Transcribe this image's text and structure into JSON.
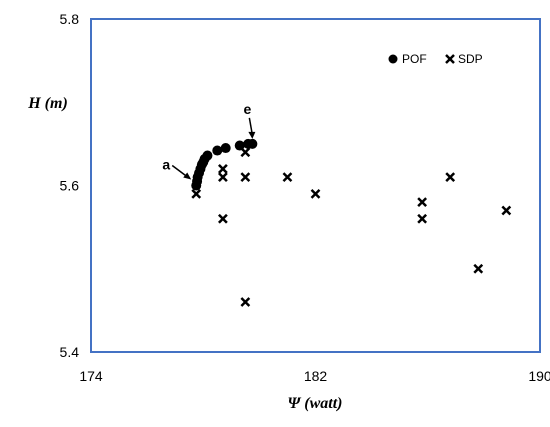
{
  "chart_data": {
    "type": "scatter",
    "xlabel": "Ψ (watt)",
    "ylabel": "H (m)",
    "xlim": [
      174,
      190
    ],
    "ylim": [
      5.4,
      5.8
    ],
    "x_ticks": [
      "174",
      "182",
      "190"
    ],
    "y_ticks": [
      "5.4",
      "5.6",
      "5.8"
    ],
    "grid": false,
    "legend_position": "top-right",
    "frame_color": "#4472C4",
    "series": [
      {
        "name": "POF",
        "marker": "circle",
        "color": "#000000",
        "points": [
          [
            177.75,
            5.6
          ],
          [
            177.78,
            5.605
          ],
          [
            177.8,
            5.61
          ],
          [
            177.85,
            5.615
          ],
          [
            177.9,
            5.62
          ],
          [
            177.95,
            5.625
          ],
          [
            178.0,
            5.628
          ],
          [
            178.05,
            5.632
          ],
          [
            178.15,
            5.636
          ],
          [
            178.5,
            5.642
          ],
          [
            178.8,
            5.645
          ],
          [
            179.3,
            5.648
          ],
          [
            179.6,
            5.65
          ],
          [
            179.75,
            5.65
          ]
        ]
      },
      {
        "name": "SDP",
        "marker": "x",
        "color": "#000000",
        "points": [
          [
            177.75,
            5.59
          ],
          [
            178.7,
            5.62
          ],
          [
            178.7,
            5.61
          ],
          [
            178.7,
            5.56
          ],
          [
            179.5,
            5.64
          ],
          [
            179.5,
            5.61
          ],
          [
            179.5,
            5.46
          ],
          [
            181.0,
            5.61
          ],
          [
            182.0,
            5.59
          ],
          [
            185.8,
            5.58
          ],
          [
            185.8,
            5.56
          ],
          [
            186.8,
            5.61
          ],
          [
            187.8,
            5.5
          ],
          [
            188.8,
            5.57
          ]
        ]
      }
    ],
    "annotations": [
      {
        "label": "a",
        "x": 177.75,
        "y": 5.6
      },
      {
        "label": "e",
        "x": 179.75,
        "y": 5.65
      }
    ]
  }
}
